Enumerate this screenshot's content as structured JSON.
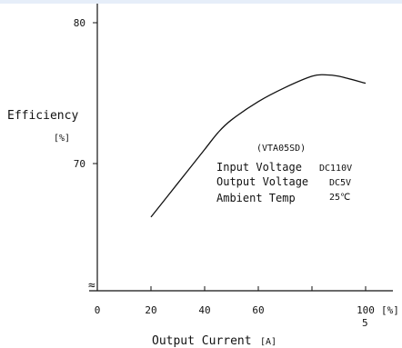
{
  "chart_data": {
    "type": "line",
    "ylabel": "Efficiency",
    "ylabel_unit": "[%]",
    "xlabel": "Output Current",
    "xlabel_unit": "[A]",
    "x_unit_tick": "[%]",
    "x_ticks": [
      0,
      20,
      40,
      60,
      80,
      100
    ],
    "x_tick_labels": [
      "0",
      "20",
      "40",
      "60",
      "",
      "100"
    ],
    "x_extra_label": "5",
    "y_ticks": [
      70,
      80
    ],
    "y_tick_labels": [
      "70",
      "80"
    ],
    "xlim": [
      0,
      110
    ],
    "ylim": [
      60,
      82
    ],
    "axis_break": "≈",
    "series": [
      {
        "x": [
          20,
          30,
          40,
          45,
          50,
          60,
          70,
          80,
          85,
          90,
          100
        ],
        "y": [
          66.2,
          68.6,
          71.0,
          72.2,
          73.1,
          74.4,
          75.4,
          76.2,
          76.3,
          76.2,
          75.7
        ]
      }
    ],
    "annotation": {
      "model": "(VTA05SD)",
      "rows": [
        {
          "label": "Input Voltage",
          "value": "DC110V"
        },
        {
          "label": "Output Voltage",
          "value": "DC5V"
        },
        {
          "label": "Ambient Temp",
          "value": "25℃"
        }
      ]
    }
  }
}
